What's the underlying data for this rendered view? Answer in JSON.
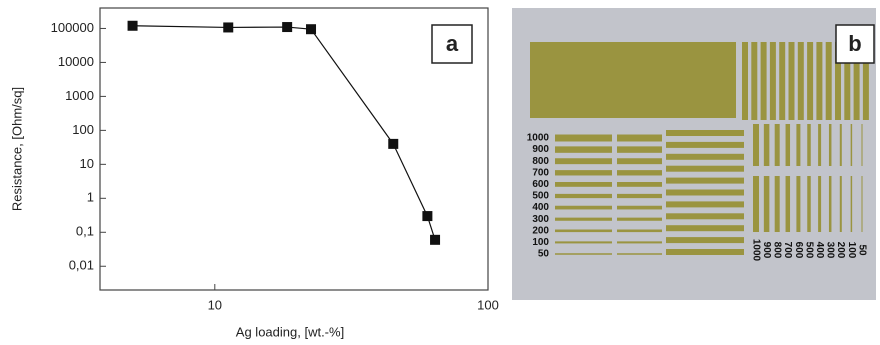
{
  "chart_data": {
    "type": "line",
    "marker": "square",
    "color": "#111111",
    "x_label": "Ag loading, [wt.-%]",
    "y_label": "Resistance, [Ohm/sq]",
    "panel_label": "a",
    "x": [
      5.0,
      11.2,
      18.4,
      22.5,
      45,
      60,
      64
    ],
    "values": [
      120000,
      107000,
      110000,
      95000,
      40,
      0.3,
      0.06
    ],
    "xscale": "log",
    "yscale": "log",
    "xlim": [
      3.8,
      100
    ],
    "ylim": [
      0.002,
      400000
    ],
    "xticks": [
      10,
      100
    ],
    "yticks": [
      {
        "value": 0.01,
        "label": "0,01"
      },
      {
        "value": 0.1,
        "label": "0,1"
      },
      1,
      10,
      100,
      1000,
      10000,
      100000
    ]
  },
  "photo": {
    "panel_label": "b",
    "row_labels": [
      "1000",
      "900",
      "800",
      "700",
      "600",
      "500",
      "400",
      "300",
      "200",
      "100",
      "50"
    ],
    "column_labels": [
      "1000",
      "900",
      "800",
      "700",
      "600",
      "500",
      "400",
      "300",
      "200",
      "100",
      "50"
    ]
  }
}
